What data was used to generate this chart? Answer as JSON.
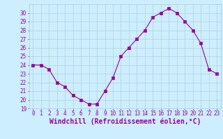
{
  "x": [
    0,
    1,
    2,
    3,
    4,
    5,
    6,
    7,
    8,
    9,
    10,
    11,
    12,
    13,
    14,
    15,
    16,
    17,
    18,
    19,
    20,
    21,
    22,
    23
  ],
  "y": [
    24.0,
    24.0,
    23.5,
    22.0,
    21.5,
    20.5,
    20.0,
    19.5,
    19.5,
    21.0,
    22.5,
    25.0,
    26.0,
    27.0,
    28.0,
    29.5,
    30.0,
    30.5,
    30.0,
    29.0,
    28.0,
    26.5,
    23.5,
    23.0
  ],
  "line_color": "#990099",
  "marker": "s",
  "marker_size": 2.2,
  "xlabel": "Windchill (Refroidissement éolien,°C)",
  "xlabel_fontsize": 7,
  "bg_color": "#cceeff",
  "grid_color": "#aacccc",
  "label_color": "#990099",
  "ylim": [
    19,
    31
  ],
  "xlim": [
    -0.5,
    23.5
  ],
  "yticks": [
    19,
    20,
    21,
    22,
    23,
    24,
    25,
    26,
    27,
    28,
    29,
    30
  ],
  "xticks": [
    0,
    1,
    2,
    3,
    4,
    5,
    6,
    7,
    8,
    9,
    10,
    11,
    12,
    13,
    14,
    15,
    16,
    17,
    18,
    19,
    20,
    21,
    22,
    23
  ],
  "tick_fontsize": 5.5,
  "line_width": 0.8
}
